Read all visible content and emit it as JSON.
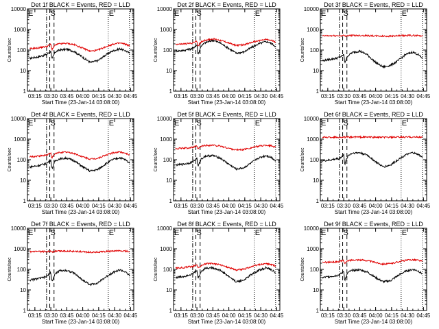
{
  "chart_data": {
    "type": "line",
    "ylabel": "Counts/sec",
    "xlabel": "Start Time (23-Jan-14 03:08:00)",
    "x_tick_labels": [
      "03:15",
      "03:30",
      "03:45",
      "04:00",
      "04:15",
      "04:30",
      "04:45"
    ],
    "y_tick_labels": [
      "1",
      "10",
      "100",
      "1000",
      "10000"
    ],
    "y_scale": "log",
    "ylim": [
      1,
      10000
    ],
    "xlim": [
      "03:08",
      "04:48"
    ],
    "colors": {
      "black": "#000000",
      "red": "#e00000"
    },
    "markers": [
      {
        "label": "E",
        "time": "03:08",
        "style": "dotted"
      },
      {
        "label": "",
        "time": "03:26",
        "style": "dash-dot"
      },
      {
        "label": "S",
        "time": "03:29",
        "style": "dashed"
      },
      {
        "label": "",
        "time": "03:33",
        "style": "dashed"
      },
      {
        "label": "E",
        "time": "04:24",
        "style": "dotted"
      },
      {
        "label": "",
        "time": "04:44",
        "style": "dotted"
      }
    ],
    "panels": [
      {
        "title": "Det 1f BLACK = Events, RED = LLD",
        "red_level": 160,
        "red_gain": 0.6,
        "series": [
          {
            "name": "BLACK = Events",
            "x": [
              "03:10",
              "03:17",
              "03:23",
              "03:26",
              "03:28",
              "03:30",
              "03:31",
              "03:34",
              "03:38",
              "03:45",
              "03:52",
              "04:00",
              "04:07",
              "04:14",
              "04:21",
              "04:28",
              "04:35",
              "04:40",
              "04:44"
            ],
            "y": [
              40,
              45,
              55,
              60,
              75,
              90,
              35,
              80,
              100,
              110,
              85,
              45,
              25,
              30,
              55,
              90,
              115,
              95,
              70
            ]
          },
          {
            "name": "RED = LLD",
            "values_source": "red_level",
            "approx_y": 160
          }
        ]
      },
      {
        "title": "Det 2f BLACK = Events, RED = LLD",
        "red_level": 250,
        "red_gain": 0.5,
        "series": [
          {
            "name": "BLACK = Events",
            "x": [
              "03:10",
              "03:17",
              "03:23",
              "03:26",
              "03:28",
              "03:30",
              "03:31",
              "03:34",
              "03:38",
              "03:45",
              "03:52",
              "04:00",
              "04:07",
              "04:14",
              "04:21",
              "04:28",
              "04:35",
              "04:40",
              "04:44"
            ],
            "y": [
              90,
              95,
              110,
              120,
              150,
              180,
              60,
              160,
              230,
              300,
              220,
              120,
              70,
              80,
              130,
              200,
              260,
              210,
              150
            ]
          },
          {
            "name": "RED = LLD",
            "values_source": "red_level",
            "approx_y": 250
          }
        ]
      },
      {
        "title": "Det 3f BLACK = Events, RED = LLD",
        "red_level": 500,
        "red_gain": 0.05,
        "series": [
          {
            "name": "BLACK = Events",
            "x": [
              "03:10",
              "03:17",
              "03:23",
              "03:26",
              "03:28",
              "03:30",
              "03:31",
              "03:34",
              "03:38",
              "03:45",
              "03:52",
              "04:00",
              "04:07",
              "04:14",
              "04:21",
              "04:28",
              "04:35",
              "04:40",
              "04:44"
            ],
            "y": [
              30,
              35,
              40,
              45,
              50,
              60,
              25,
              55,
              75,
              90,
              60,
              25,
              15,
              18,
              30,
              60,
              80,
              60,
              40
            ]
          },
          {
            "name": "RED = LLD",
            "values_source": "red_level",
            "approx_y": 500
          }
        ]
      },
      {
        "title": "Det 4f BLACK = Events, RED = LLD",
        "red_level": 180,
        "red_gain": 0.55,
        "series": [
          {
            "name": "BLACK = Events",
            "x": [
              "03:10",
              "03:17",
              "03:23",
              "03:26",
              "03:28",
              "03:30",
              "03:31",
              "03:34",
              "03:38",
              "03:45",
              "03:52",
              "04:00",
              "04:07",
              "04:14",
              "04:21",
              "04:28",
              "04:35",
              "04:40",
              "04:44"
            ],
            "y": [
              45,
              50,
              60,
              65,
              80,
              100,
              35,
              85,
              110,
              120,
              90,
              45,
              28,
              33,
              60,
              100,
              125,
              100,
              70
            ]
          },
          {
            "name": "RED = LLD",
            "values_source": "red_level",
            "approx_y": 180
          }
        ]
      },
      {
        "title": "Det 5f BLACK = Events, RED = LLD",
        "red_level": 420,
        "red_gain": 0.35,
        "series": [
          {
            "name": "BLACK = Events",
            "x": [
              "03:10",
              "03:17",
              "03:23",
              "03:26",
              "03:28",
              "03:30",
              "03:31",
              "03:34",
              "03:38",
              "03:45",
              "03:52",
              "04:00",
              "04:07",
              "04:14",
              "04:21",
              "04:28",
              "04:35",
              "04:40",
              "04:44"
            ],
            "y": [
              55,
              60,
              70,
              80,
              95,
              120,
              45,
              110,
              150,
              160,
              120,
              60,
              35,
              40,
              70,
              120,
              160,
              130,
              90
            ]
          },
          {
            "name": "RED = LLD",
            "values_source": "red_level",
            "approx_y": 420
          }
        ]
      },
      {
        "title": "Det 6f BLACK = Events, RED = LLD",
        "red_level": 1250,
        "red_gain": 0.02,
        "series": [
          {
            "name": "BLACK = Events",
            "x": [
              "03:10",
              "03:17",
              "03:23",
              "03:26",
              "03:28",
              "03:30",
              "03:31",
              "03:34",
              "03:38",
              "03:45",
              "03:52",
              "04:00",
              "04:07",
              "04:14",
              "04:21",
              "04:28",
              "04:35",
              "04:40",
              "04:44"
            ],
            "y": [
              90,
              95,
              110,
              115,
              140,
              170,
              60,
              160,
              210,
              220,
              170,
              80,
              45,
              55,
              100,
              170,
              220,
              180,
              130
            ]
          },
          {
            "name": "RED = LLD",
            "values_source": "red_level",
            "approx_y": 1250
          }
        ]
      },
      {
        "title": "Det 7f BLACK = Events, RED = LLD",
        "red_level": 750,
        "red_gain": 0.08,
        "series": [
          {
            "name": "BLACK = Events",
            "x": [
              "03:10",
              "03:17",
              "03:23",
              "03:26",
              "03:28",
              "03:30",
              "03:31",
              "03:34",
              "03:38",
              "03:45",
              "03:52",
              "04:00",
              "04:07",
              "04:14",
              "04:21",
              "04:28",
              "04:35",
              "04:40",
              "04:44"
            ],
            "y": [
              30,
              35,
              40,
              45,
              55,
              70,
              25,
              60,
              85,
              90,
              65,
              30,
              18,
              22,
              40,
              70,
              95,
              75,
              50
            ]
          },
          {
            "name": "RED = LLD",
            "values_source": "red_level",
            "approx_y": 750
          }
        ]
      },
      {
        "title": "Det 8f BLACK = Events, RED = LLD",
        "red_level": 150,
        "red_gain": 0.45,
        "series": [
          {
            "name": "BLACK = Events",
            "x": [
              "03:10",
              "03:17",
              "03:23",
              "03:26",
              "03:28",
              "03:30",
              "03:31",
              "03:34",
              "03:38",
              "03:45",
              "03:52",
              "04:00",
              "04:07",
              "04:14",
              "04:21",
              "04:28",
              "04:35",
              "04:40",
              "04:44"
            ],
            "y": [
              40,
              45,
              55,
              60,
              75,
              95,
              35,
              80,
              115,
              120,
              90,
              45,
              25,
              30,
              55,
              90,
              120,
              95,
              70
            ]
          },
          {
            "name": "RED = LLD",
            "values_source": "red_level",
            "approx_y": 150
          }
        ]
      },
      {
        "title": "Det 9f BLACK = Events, RED = LLD",
        "red_level": 250,
        "red_gain": 0.35,
        "series": [
          {
            "name": "BLACK = Events",
            "x": [
              "03:10",
              "03:17",
              "03:23",
              "03:26",
              "03:28",
              "03:30",
              "03:31",
              "03:34",
              "03:38",
              "03:45",
              "03:52",
              "04:00",
              "04:07",
              "04:14",
              "04:21",
              "04:28",
              "04:35",
              "04:40",
              "04:44"
            ],
            "y": [
              40,
              45,
              50,
              55,
              65,
              80,
              30,
              70,
              90,
              95,
              75,
              40,
              25,
              28,
              50,
              80,
              100,
              85,
              60
            ]
          },
          {
            "name": "RED = LLD",
            "values_source": "red_level",
            "approx_y": 250
          }
        ]
      }
    ]
  }
}
